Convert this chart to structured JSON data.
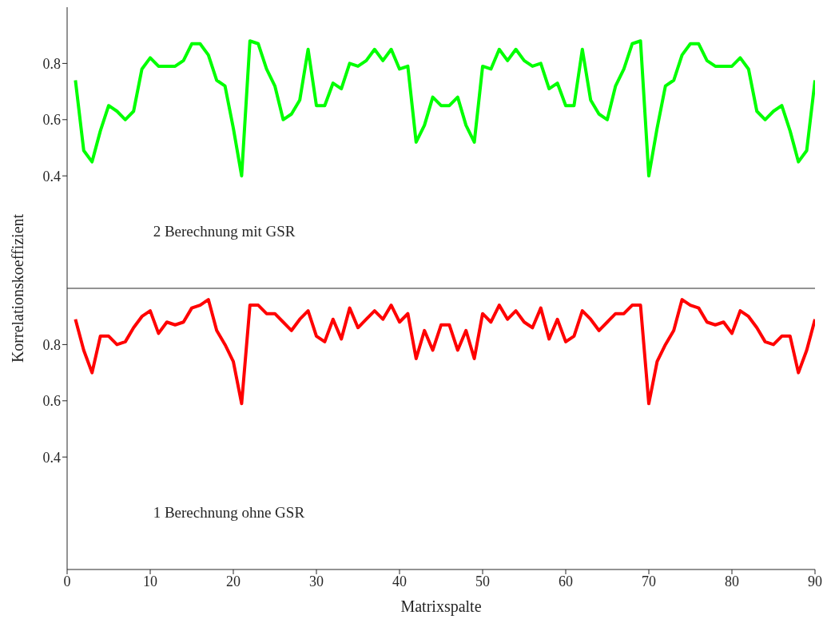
{
  "chart_data": [
    {
      "type": "line",
      "ylabel": "Korrelationskoeffizient",
      "annotations": [
        "2 Berechnung mit GSR"
      ],
      "tick_labels": "y",
      "xlim": [
        0,
        90
      ],
      "ylim": [
        0,
        1
      ],
      "yticks": [
        0.4,
        0.6,
        0.8
      ],
      "x": [
        1,
        2,
        3,
        4,
        5,
        6,
        7,
        8,
        9,
        10,
        11,
        12,
        13,
        14,
        15,
        16,
        17,
        18,
        19,
        20,
        21,
        22,
        23,
        24,
        25,
        26,
        27,
        28,
        29,
        30,
        31,
        32,
        33,
        34,
        35,
        36,
        37,
        38,
        39,
        40,
        41,
        42,
        43,
        44,
        45,
        46,
        47,
        48,
        49,
        50,
        51,
        52,
        53,
        54,
        55,
        56,
        57,
        58,
        59,
        60,
        61,
        62,
        63,
        64,
        65,
        66,
        67,
        68,
        69,
        70,
        71,
        72,
        73,
        74,
        75,
        76,
        77,
        78,
        79,
        80,
        81,
        82,
        83,
        84,
        85,
        86,
        87,
        88,
        89,
        90
      ],
      "series": [
        {
          "color": "#00ff00",
          "values": [
            0.74,
            0.49,
            0.45,
            0.56,
            0.65,
            0.63,
            0.6,
            0.63,
            0.78,
            0.82,
            0.79,
            0.79,
            0.79,
            0.81,
            0.87,
            0.87,
            0.83,
            0.74,
            0.72,
            0.57,
            0.4,
            0.88,
            0.87,
            0.78,
            0.72,
            0.6,
            0.62,
            0.67,
            0.85,
            0.65,
            0.65,
            0.73,
            0.71,
            0.8,
            0.79,
            0.81,
            0.85,
            0.81,
            0.85,
            0.78,
            0.79,
            0.52,
            0.58,
            0.68,
            0.65,
            0.65,
            0.68,
            0.58,
            0.52,
            0.79,
            0.78,
            0.85,
            0.81,
            0.85,
            0.81,
            0.79,
            0.8,
            0.71,
            0.73,
            0.65,
            0.65,
            0.85,
            0.67,
            0.62,
            0.6,
            0.72,
            0.78,
            0.87,
            0.88,
            0.4,
            0.57,
            0.72,
            0.74,
            0.83,
            0.87,
            0.87,
            0.81,
            0.79,
            0.79,
            0.79,
            0.82,
            0.78,
            0.63,
            0.6,
            0.63,
            0.65,
            0.56,
            0.45,
            0.49,
            0.74
          ]
        }
      ]
    },
    {
      "type": "line",
      "xlabel": "Matrixspalte",
      "annotations": [
        "1 Berechnung ohne GSR"
      ],
      "xlim": [
        0,
        90
      ],
      "xticks": [
        0,
        10,
        20,
        30,
        40,
        50,
        60,
        70,
        80,
        90
      ],
      "ylim": [
        0,
        1
      ],
      "yticks": [
        0.4,
        0.6,
        0.8
      ],
      "x": [
        1,
        2,
        3,
        4,
        5,
        6,
        7,
        8,
        9,
        10,
        11,
        12,
        13,
        14,
        15,
        16,
        17,
        18,
        19,
        20,
        21,
        22,
        23,
        24,
        25,
        26,
        27,
        28,
        29,
        30,
        31,
        32,
        33,
        34,
        35,
        36,
        37,
        38,
        39,
        40,
        41,
        42,
        43,
        44,
        45,
        46,
        47,
        48,
        49,
        50,
        51,
        52,
        53,
        54,
        55,
        56,
        57,
        58,
        59,
        60,
        61,
        62,
        63,
        64,
        65,
        66,
        67,
        68,
        69,
        70,
        71,
        72,
        73,
        74,
        75,
        76,
        77,
        78,
        79,
        80,
        81,
        82,
        83,
        84,
        85,
        86,
        87,
        88,
        89,
        90
      ],
      "series": [
        {
          "color": "#ff0000",
          "values": [
            0.89,
            0.78,
            0.7,
            0.83,
            0.83,
            0.8,
            0.81,
            0.86,
            0.9,
            0.92,
            0.84,
            0.88,
            0.87,
            0.88,
            0.93,
            0.94,
            0.96,
            0.85,
            0.8,
            0.74,
            0.59,
            0.94,
            0.94,
            0.91,
            0.91,
            0.88,
            0.85,
            0.89,
            0.92,
            0.83,
            0.81,
            0.89,
            0.82,
            0.93,
            0.86,
            0.89,
            0.92,
            0.89,
            0.94,
            0.88,
            0.91,
            0.75,
            0.85,
            0.78,
            0.87,
            0.87,
            0.78,
            0.85,
            0.75,
            0.91,
            0.88,
            0.94,
            0.89,
            0.92,
            0.88,
            0.86,
            0.93,
            0.82,
            0.89,
            0.81,
            0.83,
            0.92,
            0.89,
            0.85,
            0.88,
            0.91,
            0.91,
            0.94,
            0.94,
            0.59,
            0.74,
            0.8,
            0.85,
            0.96,
            0.94,
            0.93,
            0.88,
            0.87,
            0.88,
            0.84,
            0.92,
            0.9,
            0.86,
            0.81,
            0.8,
            0.83,
            0.83,
            0.7,
            0.78,
            0.89
          ]
        }
      ]
    }
  ]
}
